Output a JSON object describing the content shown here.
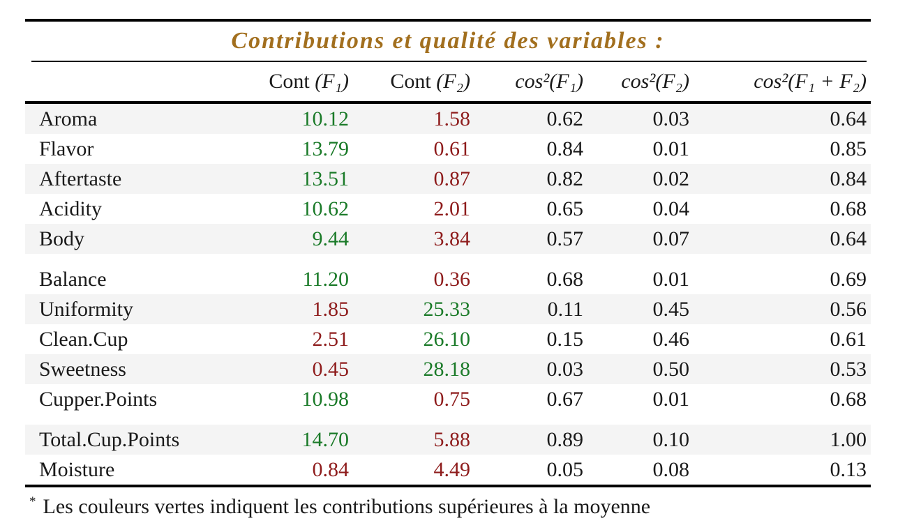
{
  "title": "Contributions et qualité des variables :",
  "colors": {
    "title_gold": "#a26f1e",
    "value_green": "#1a7a28",
    "value_red": "#8e1c1c",
    "row_shade": "#f4f4f4",
    "rule_black": "#000000",
    "text_black": "#1a1a1a"
  },
  "table": {
    "columns": [
      {
        "prefix": "Cont ",
        "math": "(F₁)"
      },
      {
        "prefix": "Cont ",
        "math": "(F₂)"
      },
      {
        "prefix": "",
        "math": "cos²(F₁)"
      },
      {
        "prefix": "",
        "math": "cos²(F₂)"
      },
      {
        "prefix": "",
        "math": "cos²(F₁ + F₂)"
      }
    ],
    "groups": [
      {
        "rows": [
          {
            "label": "Aroma",
            "cont_f1": {
              "value": "10.12",
              "tone": "green"
            },
            "cont_f2": {
              "value": "1.58",
              "tone": "red"
            },
            "cos2_f1": "0.62",
            "cos2_f2": "0.03",
            "cos2_f1f2": "0.64"
          },
          {
            "label": "Flavor",
            "cont_f1": {
              "value": "13.79",
              "tone": "green"
            },
            "cont_f2": {
              "value": "0.61",
              "tone": "red"
            },
            "cos2_f1": "0.84",
            "cos2_f2": "0.01",
            "cos2_f1f2": "0.85"
          },
          {
            "label": "Aftertaste",
            "cont_f1": {
              "value": "13.51",
              "tone": "green"
            },
            "cont_f2": {
              "value": "0.87",
              "tone": "red"
            },
            "cos2_f1": "0.82",
            "cos2_f2": "0.02",
            "cos2_f1f2": "0.84"
          },
          {
            "label": "Acidity",
            "cont_f1": {
              "value": "10.62",
              "tone": "green"
            },
            "cont_f2": {
              "value": "2.01",
              "tone": "red"
            },
            "cos2_f1": "0.65",
            "cos2_f2": "0.04",
            "cos2_f1f2": "0.68"
          },
          {
            "label": "Body",
            "cont_f1": {
              "value": "9.44",
              "tone": "green"
            },
            "cont_f2": {
              "value": "3.84",
              "tone": "red"
            },
            "cos2_f1": "0.57",
            "cos2_f2": "0.07",
            "cos2_f1f2": "0.64"
          }
        ]
      },
      {
        "rows": [
          {
            "label": "Balance",
            "cont_f1": {
              "value": "11.20",
              "tone": "green"
            },
            "cont_f2": {
              "value": "0.36",
              "tone": "red"
            },
            "cos2_f1": "0.68",
            "cos2_f2": "0.01",
            "cos2_f1f2": "0.69"
          },
          {
            "label": "Uniformity",
            "cont_f1": {
              "value": "1.85",
              "tone": "red"
            },
            "cont_f2": {
              "value": "25.33",
              "tone": "green"
            },
            "cos2_f1": "0.11",
            "cos2_f2": "0.45",
            "cos2_f1f2": "0.56"
          },
          {
            "label": "Clean.Cup",
            "cont_f1": {
              "value": "2.51",
              "tone": "red"
            },
            "cont_f2": {
              "value": "26.10",
              "tone": "green"
            },
            "cos2_f1": "0.15",
            "cos2_f2": "0.46",
            "cos2_f1f2": "0.61"
          },
          {
            "label": "Sweetness",
            "cont_f1": {
              "value": "0.45",
              "tone": "red"
            },
            "cont_f2": {
              "value": "28.18",
              "tone": "green"
            },
            "cos2_f1": "0.03",
            "cos2_f2": "0.50",
            "cos2_f1f2": "0.53"
          },
          {
            "label": "Cupper.Points",
            "cont_f1": {
              "value": "10.98",
              "tone": "green"
            },
            "cont_f2": {
              "value": "0.75",
              "tone": "red"
            },
            "cos2_f1": "0.67",
            "cos2_f2": "0.01",
            "cos2_f1f2": "0.68"
          }
        ]
      },
      {
        "rows": [
          {
            "label": "Total.Cup.Points",
            "cont_f1": {
              "value": "14.70",
              "tone": "green"
            },
            "cont_f2": {
              "value": "5.88",
              "tone": "red"
            },
            "cos2_f1": "0.89",
            "cos2_f2": "0.10",
            "cos2_f1f2": "1.00"
          },
          {
            "label": "Moisture",
            "cont_f1": {
              "value": "0.84",
              "tone": "red"
            },
            "cont_f2": {
              "value": "4.49",
              "tone": "red"
            },
            "cos2_f1": "0.05",
            "cos2_f2": "0.08",
            "cos2_f1f2": "0.13"
          }
        ]
      }
    ]
  },
  "footnote": {
    "marker": "*",
    "text": "Les couleurs vertes indiquent les contributions supérieures à la moyenne"
  }
}
